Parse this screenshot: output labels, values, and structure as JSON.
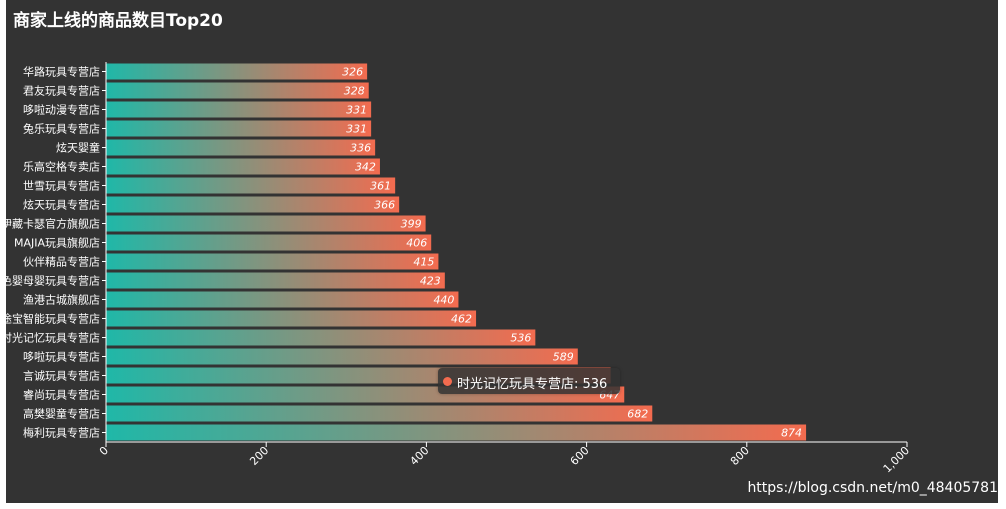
{
  "chart_data": {
    "type": "bar",
    "orientation": "horizontal",
    "title": "商家上线的商品数目Top20",
    "categories": [
      "梅利玩具专营店",
      "高樊婴童专营店",
      "睿尚玩具专营店",
      "言诚玩具专营店",
      "哆啦玩具专营店",
      "时光记忆玩具专营店",
      "途宝智能玩具专营店",
      "渔港古城旗舰店",
      "绿色婴母婴玩具专营店",
      "伙伴精品专营店",
      "MAJIA玩具旗舰店",
      "伊藏卡瑟官方旗舰店",
      "炫天玩具专营店",
      "世雪玩具专营店",
      "乐高空格专卖店",
      "炫天婴童",
      "兔乐玩具专营店",
      "哆啦动漫专营店",
      "君友玩具专营店",
      "华路玩具专营店"
    ],
    "values": [
      874,
      682,
      647,
      630,
      589,
      536,
      462,
      440,
      423,
      415,
      406,
      399,
      366,
      361,
      342,
      336,
      331,
      331,
      328,
      326
    ],
    "value_labels": [
      "874",
      "682",
      "647",
      "",
      "589",
      "536",
      "462",
      "440",
      "423",
      "415",
      "406",
      "399",
      "366",
      "361",
      "342",
      "336",
      "331",
      "331",
      "328",
      "326"
    ],
    "xlim": [
      0,
      1000
    ],
    "x_ticks": [
      "0",
      "200",
      "400",
      "600",
      "800",
      "1,000"
    ],
    "grid": false,
    "colors": {
      "bar_start": "#1fb8a8",
      "bar_end": "#f36b4f",
      "background": "#333333",
      "axis": "#ffffff",
      "tooltip_dot": "#f36b4f"
    }
  },
  "tooltip": {
    "text": "时光记忆玩具专营店: 536"
  },
  "watermark": "https://blog.csdn.net/m0_48405781"
}
